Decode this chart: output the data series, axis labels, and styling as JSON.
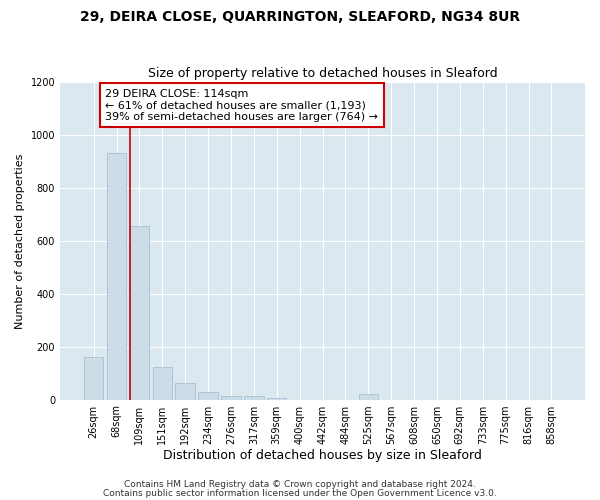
{
  "title1": "29, DEIRA CLOSE, QUARRINGTON, SLEAFORD, NG34 8UR",
  "title2": "Size of property relative to detached houses in Sleaford",
  "xlabel": "Distribution of detached houses by size in Sleaford",
  "ylabel": "Number of detached properties",
  "categories": [
    "26sqm",
    "68sqm",
    "109sqm",
    "151sqm",
    "192sqm",
    "234sqm",
    "276sqm",
    "317sqm",
    "359sqm",
    "400sqm",
    "442sqm",
    "484sqm",
    "525sqm",
    "567sqm",
    "608sqm",
    "650sqm",
    "692sqm",
    "733sqm",
    "775sqm",
    "816sqm",
    "858sqm"
  ],
  "values": [
    160,
    930,
    655,
    125,
    63,
    30,
    15,
    12,
    5,
    0,
    0,
    0,
    20,
    0,
    0,
    0,
    0,
    0,
    0,
    0,
    0
  ],
  "bar_color": "#ccdde8",
  "bar_edge_color": "#a0b8cc",
  "marker_index": 2,
  "marker_color": "#cc0000",
  "annotation_text": "29 DEIRA CLOSE: 114sqm\n← 61% of detached houses are smaller (1,193)\n39% of semi-detached houses are larger (764) →",
  "annotation_box_color": "#ffffff",
  "annotation_box_edge": "#cc0000",
  "ylim": [
    0,
    1200
  ],
  "yticks": [
    0,
    200,
    400,
    600,
    800,
    1000,
    1200
  ],
  "footer1": "Contains HM Land Registry data © Crown copyright and database right 2024.",
  "footer2": "Contains public sector information licensed under the Open Government Licence v3.0.",
  "background_color": "#ffffff",
  "plot_bg_color": "#dce8f0",
  "grid_color": "#ffffff",
  "title1_fontsize": 10,
  "title2_fontsize": 9,
  "xlabel_fontsize": 9,
  "ylabel_fontsize": 8,
  "tick_fontsize": 7,
  "annotation_fontsize": 8,
  "footer_fontsize": 6.5
}
